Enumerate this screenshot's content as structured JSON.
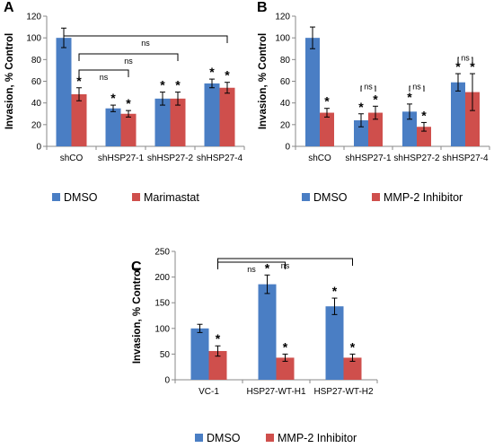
{
  "chart_data": [
    {
      "panel": "A",
      "type": "bar",
      "ylabel": "Invasion, % Control",
      "ylim": [
        0,
        120
      ],
      "yticks": [
        0,
        20,
        40,
        60,
        80,
        100,
        120
      ],
      "categories": [
        "shCO",
        "shHSP27-1",
        "shHSP27-2",
        "shHSP27-4"
      ],
      "series": [
        {
          "name": "DMSO",
          "values": [
            100,
            35,
            44,
            58
          ],
          "errors": [
            9,
            3,
            6,
            4
          ],
          "color": "#4a7ec4"
        },
        {
          "name": "Marimastat",
          "values": [
            48,
            30,
            44,
            54
          ],
          "errors": [
            6,
            3,
            6,
            5
          ],
          "color": "#cf4f4c"
        }
      ],
      "stars": [
        [
          0,
          1
        ],
        [
          1,
          0
        ],
        [
          1,
          1
        ],
        [
          2,
          0
        ],
        [
          2,
          1
        ],
        [
          3,
          0
        ],
        [
          3,
          1
        ]
      ],
      "brackets": [
        {
          "text": "ns",
          "from": [
            0,
            1
          ],
          "to": [
            1,
            1
          ]
        },
        {
          "text": "ns",
          "from": [
            0,
            1
          ],
          "to": [
            2,
            1
          ]
        },
        {
          "text": "ns",
          "from": [
            0,
            0
          ],
          "to": [
            3,
            1
          ]
        }
      ],
      "legend": [
        "DMSO",
        "Marimastat"
      ]
    },
    {
      "panel": "B",
      "type": "bar",
      "ylabel": "Invasion, % Control",
      "ylim": [
        0,
        120
      ],
      "yticks": [
        0,
        20,
        40,
        60,
        80,
        100,
        120
      ],
      "categories": [
        "shCO",
        "shHSP27-1",
        "shHSP27-2",
        "shHSP27-4"
      ],
      "series": [
        {
          "name": "DMSO",
          "values": [
            100,
            24,
            32,
            59
          ],
          "errors": [
            10,
            6,
            7,
            8
          ],
          "color": "#4a7ec4"
        },
        {
          "name": "MMP-2 Inhibitor",
          "values": [
            31,
            31,
            18,
            50
          ],
          "errors": [
            4,
            6,
            4,
            17
          ],
          "color": "#cf4f4c"
        }
      ],
      "stars": [
        [
          0,
          1
        ],
        [
          1,
          0
        ],
        [
          1,
          1
        ],
        [
          2,
          0
        ],
        [
          2,
          1
        ],
        [
          3,
          0
        ],
        [
          3,
          1
        ]
      ],
      "brackets": [
        {
          "text": "ns",
          "from": [
            1,
            0
          ],
          "to": [
            1,
            1
          ]
        },
        {
          "text": "ns",
          "from": [
            2,
            0
          ],
          "to": [
            2,
            1
          ]
        },
        {
          "text": "ns",
          "from": [
            3,
            0
          ],
          "to": [
            3,
            1
          ]
        }
      ],
      "legend": [
        "DMSO",
        "MMP-2 Inhibitor"
      ]
    },
    {
      "panel": "C",
      "type": "bar",
      "ylabel": "Invasion, % Control",
      "ylim": [
        0,
        250
      ],
      "yticks": [
        0,
        50,
        100,
        150,
        200,
        250
      ],
      "categories": [
        "VC-1",
        "HSP27-WT-H1",
        "HSP27-WT-H2"
      ],
      "series": [
        {
          "name": "DMSO",
          "values": [
            100,
            186,
            143
          ],
          "errors": [
            8,
            18,
            16
          ],
          "color": "#4a7ec4"
        },
        {
          "name": "MMP-2 Inhibitor",
          "values": [
            56,
            43,
            43
          ],
          "errors": [
            10,
            7,
            7
          ],
          "color": "#cf4f4c"
        }
      ],
      "stars": [
        [
          0,
          1
        ],
        [
          1,
          0
        ],
        [
          1,
          1
        ],
        [
          2,
          0
        ],
        [
          2,
          1
        ]
      ],
      "brackets": [
        {
          "text": "ns",
          "from": [
            0,
            1
          ],
          "to": [
            1,
            1
          ]
        },
        {
          "text": "ns",
          "from": [
            0,
            1
          ],
          "to": [
            2,
            1
          ]
        }
      ],
      "legend": [
        "DMSO",
        "MMP-2 Inhibitor"
      ]
    }
  ]
}
